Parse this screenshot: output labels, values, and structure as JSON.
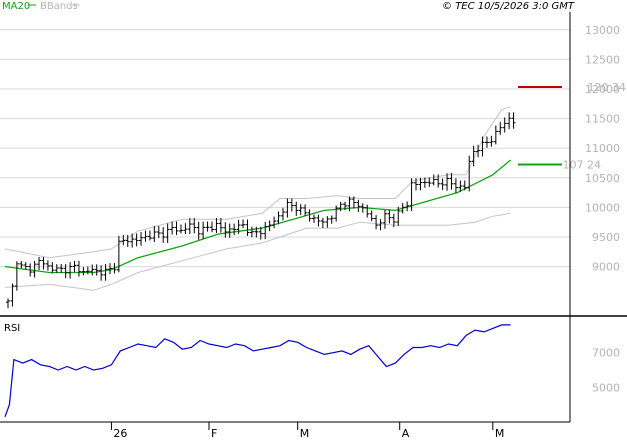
{
  "header": {
    "ma_legend": "MA20",
    "bb_legend": "BBands",
    "copyright": "© TEC 10/5/2026 3:0 GMT"
  },
  "rsi_panel": {
    "title": "RSI"
  },
  "colors": {
    "ma": "#11a511",
    "bands": "#c4c4c4",
    "price_bars": "#000000",
    "rsi": "#0000cc",
    "last_price_level": "#bb0000",
    "grid": "#d8d8d8"
  },
  "chart_data": [
    {
      "type": "ohlc",
      "ylim": [
        8200,
        13300
      ],
      "yticks": [
        9000,
        9500,
        10000,
        10500,
        11000,
        11500,
        12000,
        12500,
        13000
      ],
      "ytick_labels": [
        "9000",
        "9500",
        "10000",
        "10500",
        "11000",
        "11500",
        "12000",
        "12500",
        "13000"
      ],
      "grid": true,
      "xlim": [
        0,
        125
      ],
      "x_ticks": [
        {
          "x": 24,
          "label": "26"
        },
        {
          "x": 46,
          "label": "F"
        },
        {
          "x": 66,
          "label": "M"
        },
        {
          "x": 89,
          "label": "A"
        },
        {
          "x": 110,
          "label": "M"
        }
      ],
      "bar_count": 115,
      "ohlc_seed": [
        [
          0,
          8400
        ],
        [
          1,
          8650
        ],
        [
          2,
          9100
        ],
        [
          3,
          9000
        ],
        [
          5,
          8950
        ],
        [
          7,
          9100
        ],
        [
          9,
          9000
        ],
        [
          11,
          8950
        ],
        [
          13,
          8950
        ],
        [
          15,
          9000
        ],
        [
          17,
          8900
        ],
        [
          19,
          8950
        ],
        [
          21,
          8900
        ],
        [
          23,
          8950
        ],
        [
          24,
          9000
        ],
        [
          25,
          9400
        ],
        [
          27,
          9450
        ],
        [
          29,
          9450
        ],
        [
          31,
          9500
        ],
        [
          33,
          9550
        ],
        [
          35,
          9550
        ],
        [
          37,
          9650
        ],
        [
          39,
          9600
        ],
        [
          41,
          9700
        ],
        [
          43,
          9600
        ],
        [
          45,
          9650
        ],
        [
          47,
          9700
        ],
        [
          49,
          9600
        ],
        [
          51,
          9650
        ],
        [
          53,
          9700
        ],
        [
          55,
          9550
        ],
        [
          57,
          9600
        ],
        [
          59,
          9700
        ],
        [
          61,
          9850
        ],
        [
          63,
          10050
        ],
        [
          65,
          10000
        ],
        [
          67,
          9900
        ],
        [
          69,
          9800
        ],
        [
          71,
          9750
        ],
        [
          73,
          9850
        ],
        [
          75,
          10050
        ],
        [
          77,
          10100
        ],
        [
          79,
          10050
        ],
        [
          81,
          9900
        ],
        [
          83,
          9700
        ],
        [
          85,
          9850
        ],
        [
          87,
          9800
        ],
        [
          89,
          10000
        ],
        [
          90,
          10050
        ],
        [
          91,
          10400
        ],
        [
          93,
          10400
        ],
        [
          95,
          10450
        ],
        [
          97,
          10400
        ],
        [
          99,
          10450
        ],
        [
          101,
          10350
        ],
        [
          103,
          10350
        ],
        [
          104,
          10750
        ],
        [
          105,
          10950
        ],
        [
          107,
          11050
        ],
        [
          109,
          11150
        ],
        [
          111,
          11350
        ],
        [
          113,
          11500
        ],
        [
          114,
          11450
        ]
      ],
      "bb_upper": [
        [
          0,
          9300
        ],
        [
          10,
          9150
        ],
        [
          20,
          9250
        ],
        [
          24,
          9300
        ],
        [
          30,
          9600
        ],
        [
          40,
          9800
        ],
        [
          50,
          9800
        ],
        [
          58,
          9900
        ],
        [
          62,
          10150
        ],
        [
          68,
          10150
        ],
        [
          75,
          10200
        ],
        [
          80,
          10150
        ],
        [
          88,
          10150
        ],
        [
          92,
          10450
        ],
        [
          100,
          10550
        ],
        [
          104,
          10550
        ],
        [
          108,
          11200
        ],
        [
          112,
          11650
        ],
        [
          114,
          11700
        ]
      ],
      "bb_lower": [
        [
          0,
          8650
        ],
        [
          10,
          8700
        ],
        [
          20,
          8600
        ],
        [
          24,
          8700
        ],
        [
          30,
          8900
        ],
        [
          40,
          9100
        ],
        [
          50,
          9300
        ],
        [
          58,
          9400
        ],
        [
          62,
          9500
        ],
        [
          68,
          9650
        ],
        [
          75,
          9650
        ],
        [
          80,
          9750
        ],
        [
          88,
          9700
        ],
        [
          94,
          9700
        ],
        [
          100,
          9700
        ],
        [
          106,
          9750
        ],
        [
          110,
          9850
        ],
        [
          114,
          9900
        ]
      ],
      "ma20": [
        [
          0,
          9000
        ],
        [
          10,
          8900
        ],
        [
          20,
          8900
        ],
        [
          24,
          8950
        ],
        [
          30,
          9150
        ],
        [
          40,
          9350
        ],
        [
          48,
          9550
        ],
        [
          58,
          9650
        ],
        [
          65,
          9800
        ],
        [
          72,
          9950
        ],
        [
          80,
          10000
        ],
        [
          88,
          9950
        ],
        [
          95,
          10100
        ],
        [
          102,
          10250
        ],
        [
          106,
          10400
        ],
        [
          110,
          10550
        ],
        [
          114,
          10800
        ]
      ],
      "ma_level": 10724,
      "ma_level_label": "107 24",
      "last_price_level": 12034,
      "last_price_label": "120 34"
    },
    {
      "type": "line",
      "title": "RSI",
      "ylim": [
        30,
        90
      ],
      "yticks": [
        50,
        70
      ],
      "ytick_labels": [
        "5000",
        "7000"
      ],
      "grid": false,
      "series": [
        {
          "values": [
            [
              0,
              33
            ],
            [
              1,
              40
            ],
            [
              2,
              66
            ],
            [
              4,
              64
            ],
            [
              6,
              66
            ],
            [
              8,
              63
            ],
            [
              10,
              62
            ],
            [
              12,
              60
            ],
            [
              14,
              62
            ],
            [
              16,
              60
            ],
            [
              18,
              62
            ],
            [
              20,
              60
            ],
            [
              22,
              61
            ],
            [
              24,
              63
            ],
            [
              26,
              71
            ],
            [
              28,
              73
            ],
            [
              30,
              75
            ],
            [
              32,
              74
            ],
            [
              34,
              73
            ],
            [
              36,
              78
            ],
            [
              38,
              76
            ],
            [
              40,
              72
            ],
            [
              42,
              73
            ],
            [
              44,
              77
            ],
            [
              46,
              75
            ],
            [
              48,
              74
            ],
            [
              50,
              73
            ],
            [
              52,
              75
            ],
            [
              54,
              74
            ],
            [
              56,
              71
            ],
            [
              58,
              72
            ],
            [
              60,
              73
            ],
            [
              62,
              74
            ],
            [
              64,
              77
            ],
            [
              66,
              76
            ],
            [
              68,
              73
            ],
            [
              70,
              71
            ],
            [
              72,
              69
            ],
            [
              74,
              70
            ],
            [
              76,
              71
            ],
            [
              78,
              69
            ],
            [
              80,
              72
            ],
            [
              82,
              74
            ],
            [
              84,
              68
            ],
            [
              86,
              62
            ],
            [
              88,
              64
            ],
            [
              90,
              69
            ],
            [
              92,
              73
            ],
            [
              94,
              73
            ],
            [
              96,
              74
            ],
            [
              98,
              73
            ],
            [
              100,
              75
            ],
            [
              102,
              74
            ],
            [
              104,
              80
            ],
            [
              106,
              83
            ],
            [
              108,
              82
            ],
            [
              110,
              84
            ],
            [
              112,
              86
            ],
            [
              114,
              86
            ]
          ]
        }
      ]
    }
  ]
}
